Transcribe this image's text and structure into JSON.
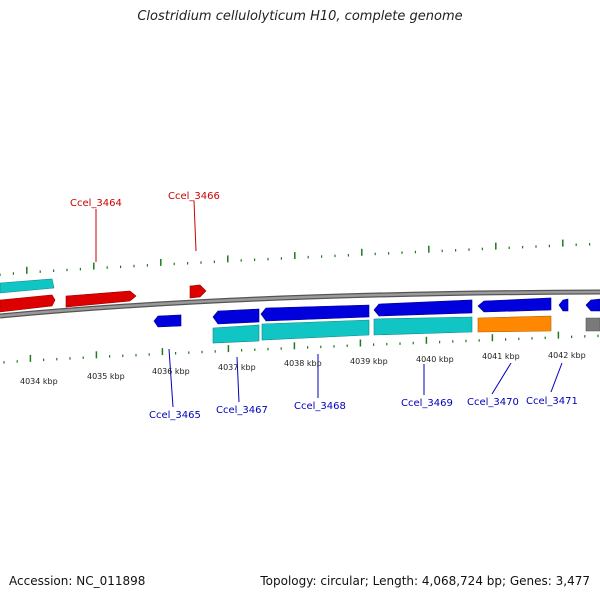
{
  "title": "Clostridium cellulolyticum H10, complete genome",
  "footer": {
    "accession": "Accession: NC_011898",
    "topology": "Topology: circular; Length: 4,068,724 bp; Genes: 3,477"
  },
  "colors": {
    "forward_gene": "#dd0000",
    "reverse_gene": "#0000dd",
    "reverse_rna": "#11c5c5",
    "reverse_orange": "#ff8800",
    "backbone": "#7a7a7a",
    "ruler": "#1e7a1e",
    "label_forward": "#cc0000",
    "label_reverse": "#0000bb"
  },
  "scale_labels": [
    "4034 kbp",
    "4035 kbp",
    "4036 kbp",
    "4037 kbp",
    "4038 kbp",
    "4039 kbp",
    "4040 kbp",
    "4041 kbp",
    "4042 kbp"
  ],
  "forward_labels": [
    "Ccel_3464",
    "Ccel_3466"
  ],
  "reverse_labels": [
    "Ccel_3465",
    "Ccel_3467",
    "Ccel_3468",
    "Ccel_3469",
    "Ccel_3470",
    "Ccel_3471"
  ]
}
